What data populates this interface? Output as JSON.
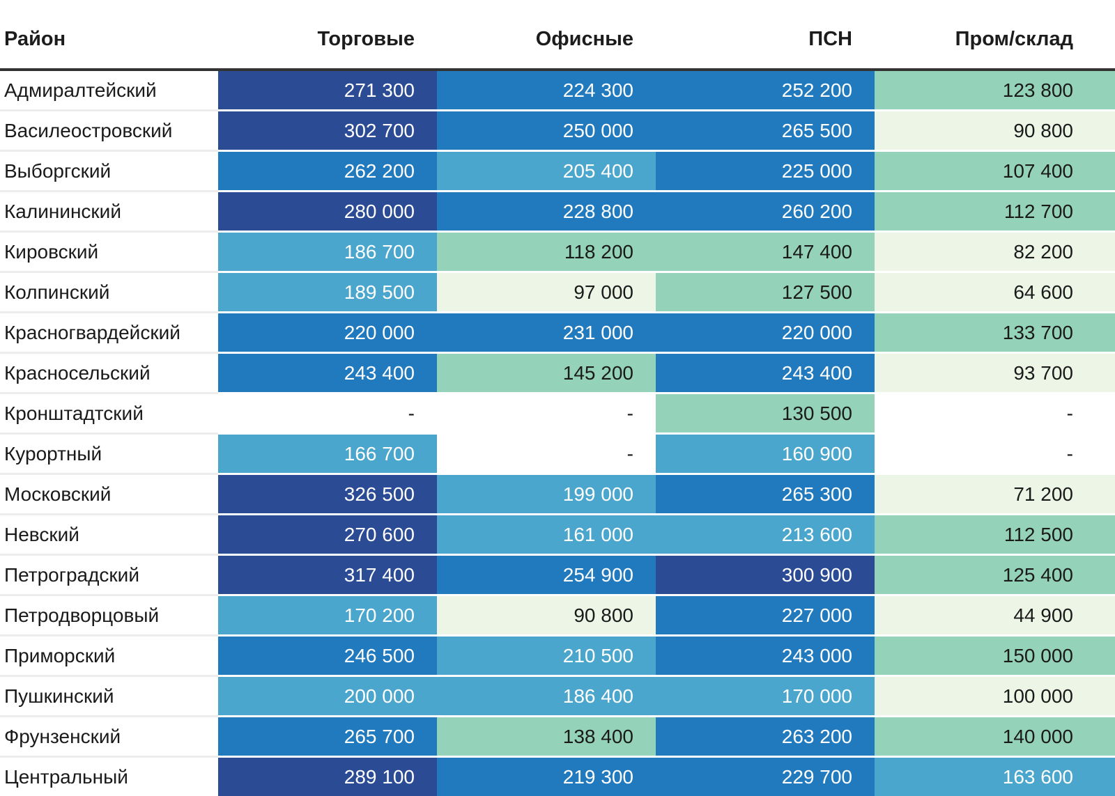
{
  "chart_data": {
    "type": "heatmap",
    "title": "",
    "row_header": "Район",
    "columns": [
      "Торговые",
      "Офисные",
      "ПСН",
      "Пром/склад"
    ],
    "rows": [
      "Адмиралтейский",
      "Василеостровский",
      "Выборгский",
      "Калининский",
      "Кировский",
      "Колпинский",
      "Красногвардейский",
      "Красносельский",
      "Кронштадтский",
      "Курортный",
      "Московский",
      "Невский",
      "Петроградский",
      "Петродворцовый",
      "Приморский",
      "Пушкинский",
      "Фрунзенский",
      "Центральный"
    ],
    "values": [
      [
        271300,
        224300,
        252200,
        123800
      ],
      [
        302700,
        250000,
        265500,
        90800
      ],
      [
        262200,
        205400,
        225000,
        107400
      ],
      [
        280000,
        228800,
        260200,
        112700
      ],
      [
        186700,
        118200,
        147400,
        82200
      ],
      [
        189500,
        97000,
        127500,
        64600
      ],
      [
        220000,
        231000,
        220000,
        133700
      ],
      [
        243400,
        145200,
        243400,
        93700
      ],
      [
        null,
        null,
        130500,
        null
      ],
      [
        166700,
        null,
        160900,
        null
      ],
      [
        326500,
        199000,
        265300,
        71200
      ],
      [
        270600,
        161000,
        213600,
        112500
      ],
      [
        317400,
        254900,
        300900,
        125400
      ],
      [
        170200,
        90800,
        227000,
        44900
      ],
      [
        246500,
        210500,
        243000,
        150000
      ],
      [
        200000,
        186400,
        170000,
        100000
      ],
      [
        265700,
        138400,
        263200,
        140000
      ],
      [
        289100,
        219300,
        229700,
        163600
      ]
    ],
    "empty_cell_text": "-",
    "thousands_separator": " ",
    "value_min": 44900,
    "value_max": 326500,
    "bin_count": 5,
    "bin_colors": [
      "#edf6e6",
      "#95d2ba",
      "#4aa6cc",
      "#217abd",
      "#2b4b94"
    ],
    "bin_text_colors": [
      "#1a1a1a",
      "#1a1a1a",
      "#ffffff",
      "#ffffff",
      "#ffffff"
    ],
    "legend_position": "none",
    "grid": false
  }
}
